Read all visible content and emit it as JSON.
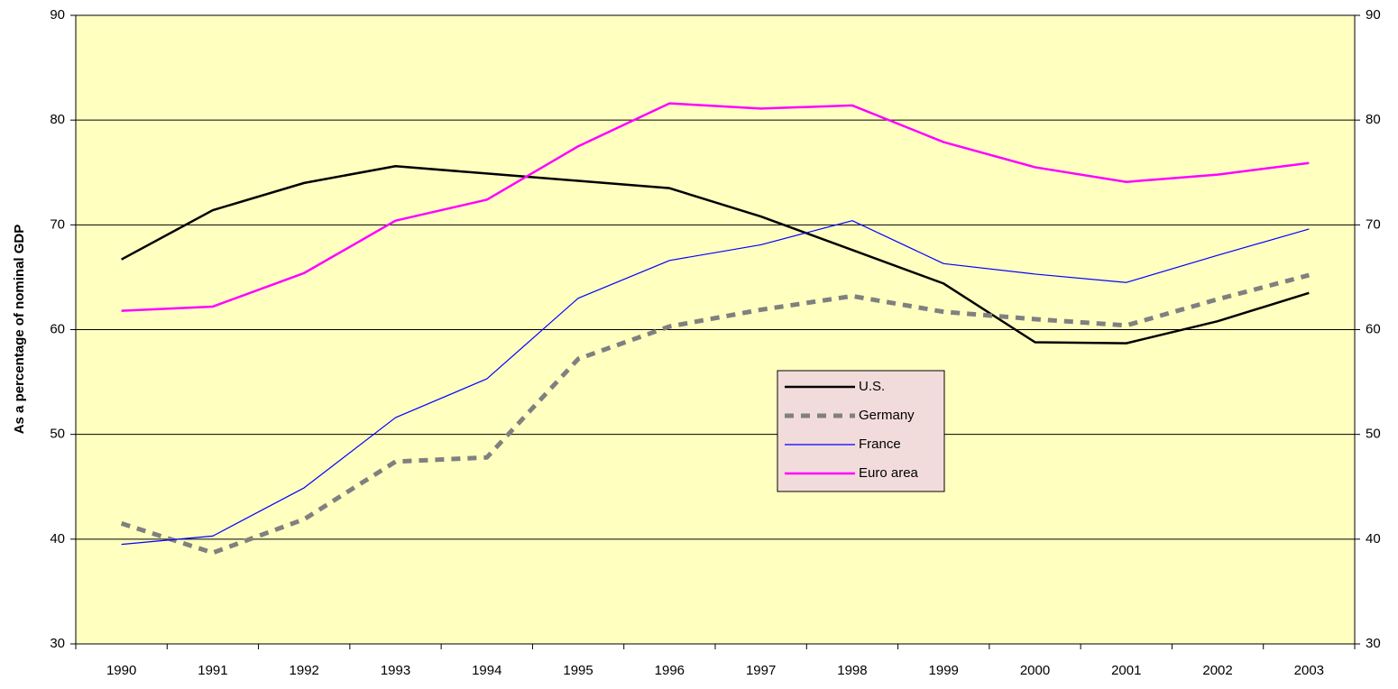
{
  "chart_data": {
    "type": "line",
    "y_label": "As a percentage of nominal GDP",
    "categories": [
      "1990",
      "1991",
      "1992",
      "1993",
      "1994",
      "1995",
      "1996",
      "1997",
      "1998",
      "1999",
      "2000",
      "2001",
      "2002",
      "2003"
    ],
    "series": [
      {
        "name": "U.S.",
        "color": "#000000",
        "values": [
          66.7,
          71.4,
          74.0,
          75.6,
          74.9,
          74.2,
          73.5,
          70.8,
          67.6,
          64.4,
          58.8,
          58.7,
          60.8,
          63.5
        ]
      },
      {
        "name": "Germany",
        "color": "#808080",
        "dashed": true,
        "values": [
          41.5,
          38.7,
          41.9,
          47.4,
          47.8,
          57.2,
          60.3,
          61.9,
          63.2,
          61.7,
          61.0,
          60.4,
          62.9,
          65.2
        ]
      },
      {
        "name": "France",
        "color": "#0000ff",
        "values": [
          39.5,
          40.3,
          44.9,
          51.6,
          55.3,
          63.0,
          66.6,
          68.1,
          70.4,
          66.3,
          65.3,
          64.5,
          67.1,
          69.6
        ]
      },
      {
        "name": "Euro area",
        "color": "#ff00ff",
        "values": [
          61.8,
          62.2,
          65.4,
          70.4,
          72.4,
          77.5,
          81.6,
          81.1,
          81.4,
          77.9,
          75.5,
          74.1,
          74.8,
          75.9
        ]
      }
    ],
    "ylim": [
      30,
      90
    ],
    "yticks": [
      30,
      40,
      50,
      60,
      70,
      80,
      90
    ],
    "y2lim": [
      30,
      90
    ],
    "y2ticks": [
      30,
      40,
      50,
      60,
      70,
      80,
      90
    ],
    "grid": true,
    "legend": "center",
    "plot_background": "#ffffc0",
    "legend_background": "#f2dcdb"
  }
}
